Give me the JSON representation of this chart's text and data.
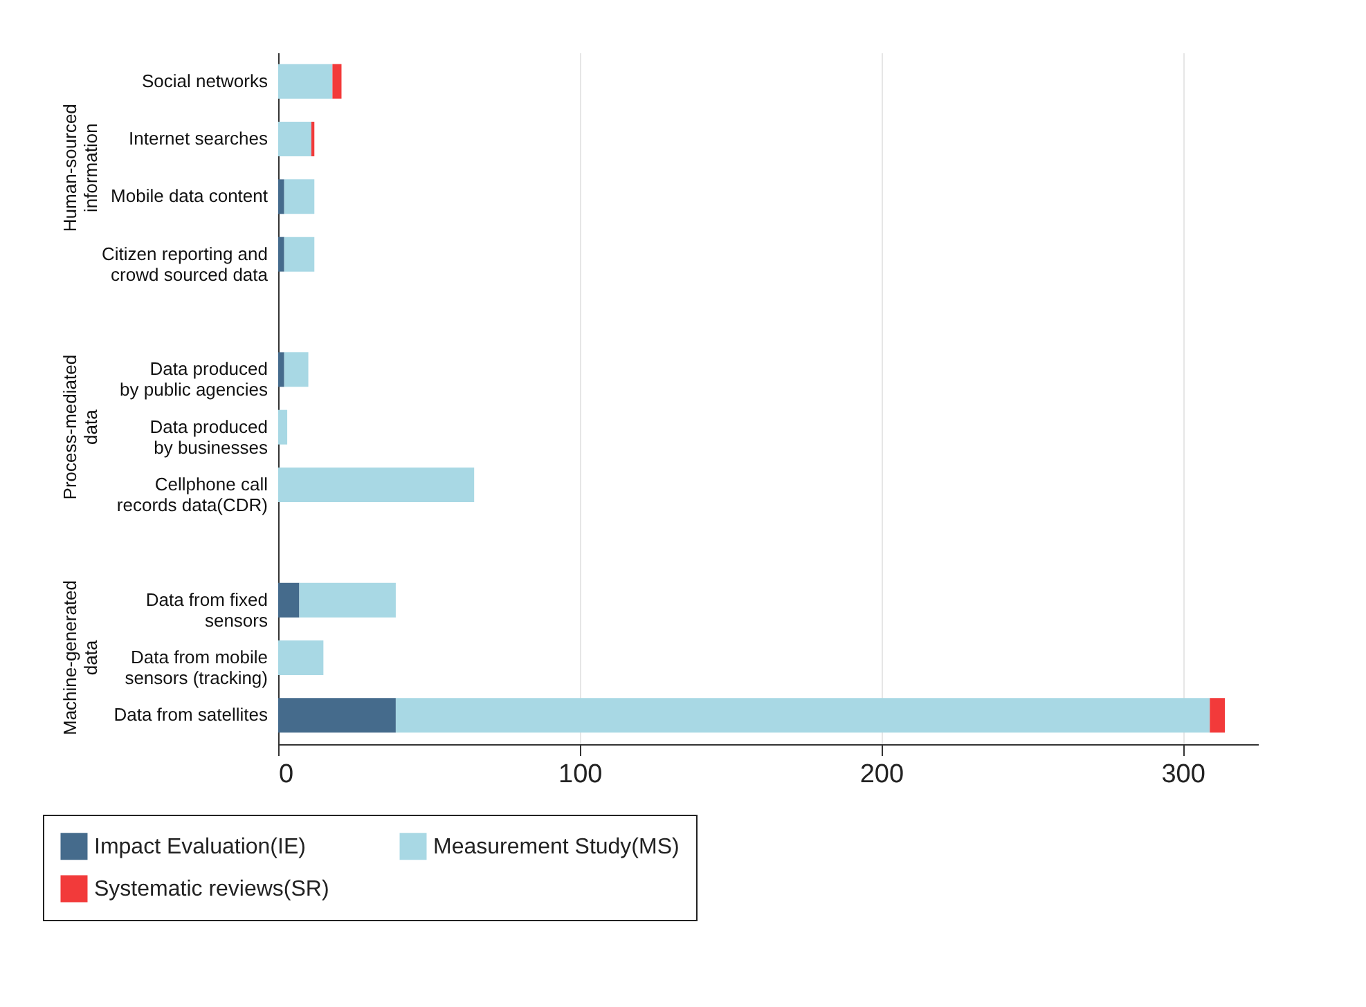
{
  "chart_data": {
    "type": "bar",
    "orientation": "horizontal",
    "stacked": true,
    "categories": [
      "Social networks",
      "Internet searches",
      "Mobile data content",
      "Citizen reporting and\ncrowd sourced data",
      null,
      "Data produced\nby public agencies",
      "Data produced\nby businesses",
      "Cellphone call\nrecords data(CDR)",
      null,
      "Data from fixed\nsensors",
      "Data from mobile\nsensors (tracking)",
      "Data from satellites"
    ],
    "series": [
      {
        "name": "Impact Evaluation(IE)",
        "color": "#456b8c",
        "values": [
          null,
          null,
          2,
          2,
          null,
          2,
          null,
          null,
          null,
          7,
          null,
          39
        ]
      },
      {
        "name": "Measurement Study(MS)",
        "color": "#a8d8e4",
        "values": [
          18,
          11,
          10,
          10,
          null,
          8,
          3,
          65,
          null,
          32,
          15,
          270
        ]
      },
      {
        "name": "Systematic reviews(SR)",
        "color": "#f23a3a",
        "values": [
          3,
          1,
          null,
          null,
          null,
          null,
          null,
          null,
          null,
          null,
          null,
          5
        ]
      }
    ],
    "xlim": [
      0,
      325
    ],
    "xticks": [
      0,
      100,
      200,
      300
    ],
    "grid": "x",
    "legend": "bottom",
    "annotations": [
      "Human-sourced\ninformation",
      "Process-mediated\ndata",
      "Machine-generated\ndata"
    ]
  }
}
